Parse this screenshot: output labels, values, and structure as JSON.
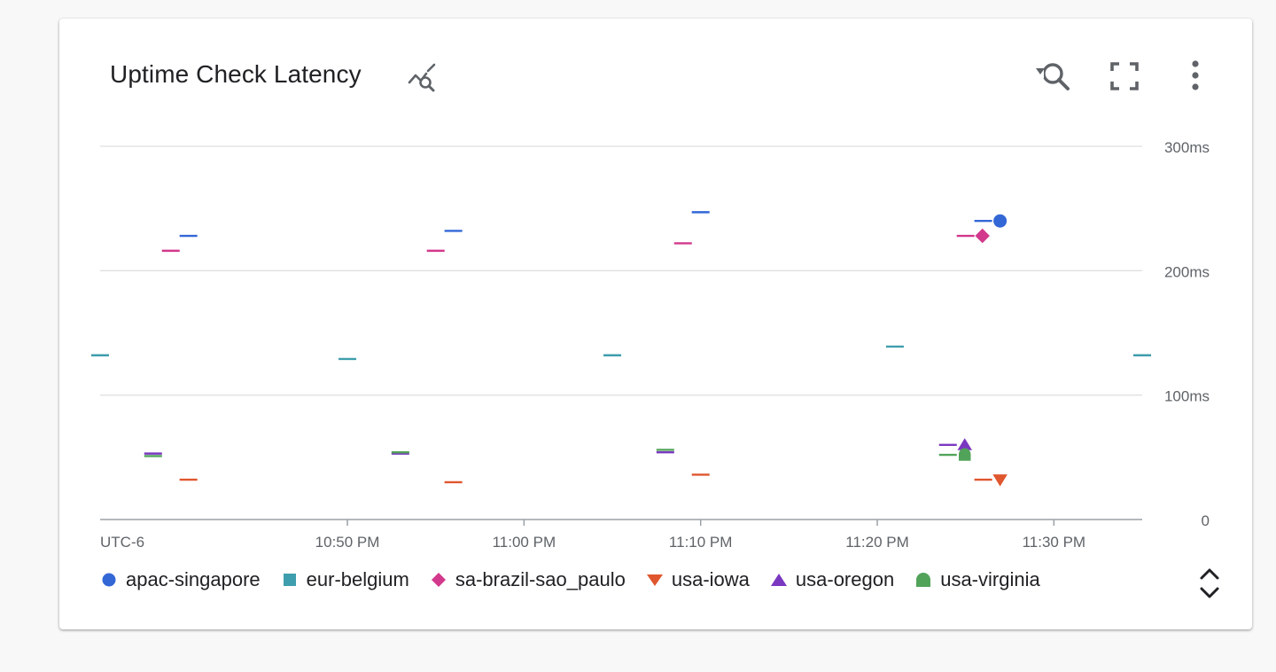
{
  "card": {
    "title": "Uptime Check Latency",
    "icons": {
      "title_icon": "analyze-chart-icon",
      "zoom_reset": "zoom-reset-icon",
      "fullscreen": "fullscreen-icon",
      "more": "more-vert-icon",
      "legend_expand": "unfold-icon"
    }
  },
  "chart_data": {
    "type": "scatter",
    "title": "Uptime Check Latency",
    "xlabel": "",
    "ylabel": "",
    "timezone_label": "UTC-6",
    "x_tick_labels": [
      "10:50 PM",
      "11:00 PM",
      "11:10 PM",
      "11:20 PM",
      "11:30 PM"
    ],
    "x_range": [
      "10:36 PM",
      "11:35 PM"
    ],
    "y_tick_labels": [
      "0",
      "100ms",
      "200ms",
      "300ms"
    ],
    "y_ticks": [
      0,
      100,
      200,
      300
    ],
    "ylim": [
      0,
      300
    ],
    "y_unit": "ms",
    "grid": "horizontal",
    "legend_position": "bottom",
    "series": [
      {
        "name": "apac-singapore",
        "color": "#3367d6",
        "marker": "circle",
        "points": [
          {
            "x": "10:41 PM",
            "y": 228
          },
          {
            "x": "10:56 PM",
            "y": 232
          },
          {
            "x": "11:10 PM",
            "y": 247
          },
          {
            "x": "11:26 PM",
            "y": 240
          }
        ]
      },
      {
        "name": "eur-belgium",
        "color": "#3f9ead",
        "marker": "square",
        "points": [
          {
            "x": "10:36 PM",
            "y": 132
          },
          {
            "x": "10:50 PM",
            "y": 129
          },
          {
            "x": "11:05 PM",
            "y": 132
          },
          {
            "x": "11:21 PM",
            "y": 139
          },
          {
            "x": "11:35 PM",
            "y": 132
          }
        ]
      },
      {
        "name": "sa-brazil-sao_paulo",
        "color": "#d2388c",
        "marker": "diamond",
        "points": [
          {
            "x": "10:40 PM",
            "y": 216
          },
          {
            "x": "10:55 PM",
            "y": 216
          },
          {
            "x": "11:09 PM",
            "y": 222
          },
          {
            "x": "11:25 PM",
            "y": 228
          }
        ]
      },
      {
        "name": "usa-iowa",
        "color": "#e0562e",
        "marker": "triangle-down",
        "points": [
          {
            "x": "10:41 PM",
            "y": 32
          },
          {
            "x": "10:56 PM",
            "y": 30
          },
          {
            "x": "11:10 PM",
            "y": 36
          },
          {
            "x": "11:26 PM",
            "y": 32
          }
        ]
      },
      {
        "name": "usa-oregon",
        "color": "#7a38c0",
        "marker": "triangle-up",
        "points": [
          {
            "x": "10:39 PM",
            "y": 53
          },
          {
            "x": "10:53 PM",
            "y": 53
          },
          {
            "x": "11:08 PM",
            "y": 54
          },
          {
            "x": "11:24 PM",
            "y": 60
          }
        ]
      },
      {
        "name": "usa-virginia",
        "color": "#52a35a",
        "marker": "rounded-square",
        "points": [
          {
            "x": "10:39 PM",
            "y": 51
          },
          {
            "x": "10:53 PM",
            "y": 54
          },
          {
            "x": "11:08 PM",
            "y": 56
          },
          {
            "x": "11:24 PM",
            "y": 52
          }
        ]
      }
    ]
  }
}
